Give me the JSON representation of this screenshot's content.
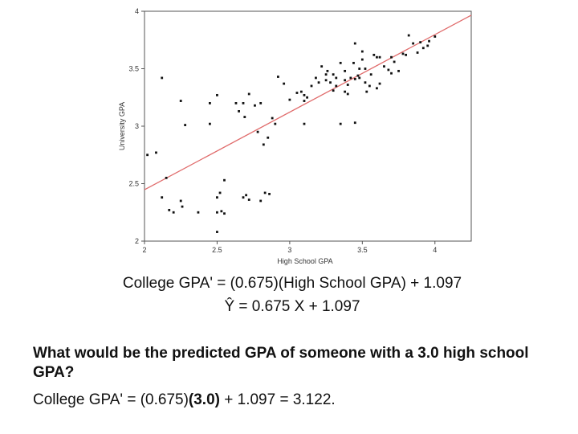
{
  "chart_data": {
    "type": "scatter",
    "xlabel": "High School GPA",
    "ylabel": "University GPA",
    "xlim": [
      2,
      4.25
    ],
    "ylim": [
      2,
      4
    ],
    "xticks": [
      "2",
      "2.5",
      "3",
      "3.5",
      "4"
    ],
    "yticks": [
      "2",
      "2.5",
      "3",
      "3.5",
      "4"
    ],
    "point_color": "#111111",
    "line_color": "#e06b6b",
    "regression": {
      "slope": 0.675,
      "intercept": 1.097
    },
    "points": [
      [
        2.02,
        2.75
      ],
      [
        2.08,
        2.77
      ],
      [
        2.12,
        3.42
      ],
      [
        2.12,
        2.38
      ],
      [
        2.15,
        2.55
      ],
      [
        2.17,
        2.27
      ],
      [
        2.2,
        2.25
      ],
      [
        2.25,
        3.22
      ],
      [
        2.25,
        2.35
      ],
      [
        2.26,
        2.3
      ],
      [
        2.28,
        3.01
      ],
      [
        2.37,
        2.25
      ],
      [
        2.45,
        3.2
      ],
      [
        2.45,
        3.02
      ],
      [
        2.5,
        3.27
      ],
      [
        2.5,
        2.38
      ],
      [
        2.52,
        2.42
      ],
      [
        2.55,
        2.53
      ],
      [
        2.53,
        2.26
      ],
      [
        2.55,
        2.24
      ],
      [
        2.5,
        2.08
      ],
      [
        2.5,
        2.25
      ],
      [
        2.63,
        3.2
      ],
      [
        2.65,
        3.13
      ],
      [
        2.68,
        3.2
      ],
      [
        2.69,
        3.08
      ],
      [
        2.72,
        3.28
      ],
      [
        2.76,
        3.18
      ],
      [
        2.78,
        2.95
      ],
      [
        2.8,
        3.2
      ],
      [
        2.68,
        2.38
      ],
      [
        2.7,
        2.4
      ],
      [
        2.72,
        2.36
      ],
      [
        2.8,
        2.35
      ],
      [
        2.83,
        2.42
      ],
      [
        2.86,
        2.41
      ],
      [
        2.82,
        2.84
      ],
      [
        2.85,
        2.9
      ],
      [
        2.88,
        3.07
      ],
      [
        2.9,
        3.02
      ],
      [
        2.92,
        3.43
      ],
      [
        2.96,
        3.37
      ],
      [
        3.0,
        3.23
      ],
      [
        3.05,
        3.29
      ],
      [
        3.08,
        3.3
      ],
      [
        3.1,
        3.27
      ],
      [
        3.1,
        3.22
      ],
      [
        3.12,
        3.25
      ],
      [
        3.15,
        3.35
      ],
      [
        3.18,
        3.42
      ],
      [
        3.2,
        3.38
      ],
      [
        3.22,
        3.52
      ],
      [
        3.25,
        3.45
      ],
      [
        3.26,
        3.48
      ],
      [
        3.28,
        3.38
      ],
      [
        3.3,
        3.31
      ],
      [
        3.32,
        3.42
      ],
      [
        3.3,
        3.45
      ],
      [
        3.35,
        3.55
      ],
      [
        3.38,
        3.4
      ],
      [
        3.38,
        3.3
      ],
      [
        3.48,
        3.42
      ],
      [
        3.5,
        3.58
      ],
      [
        3.45,
        3.41
      ],
      [
        3.47,
        3.44
      ],
      [
        3.52,
        3.38
      ],
      [
        3.53,
        3.3
      ],
      [
        3.55,
        3.35
      ],
      [
        3.6,
        3.6
      ],
      [
        3.62,
        3.37
      ],
      [
        3.65,
        3.52
      ],
      [
        3.68,
        3.49
      ],
      [
        3.7,
        3.6
      ],
      [
        3.72,
        3.56
      ],
      [
        3.75,
        3.48
      ],
      [
        3.78,
        3.63
      ],
      [
        3.8,
        3.62
      ],
      [
        3.82,
        3.79
      ],
      [
        3.85,
        3.72
      ],
      [
        3.88,
        3.64
      ],
      [
        3.9,
        3.73
      ],
      [
        3.92,
        3.68
      ],
      [
        3.95,
        3.7
      ],
      [
        3.96,
        3.74
      ],
      [
        4.0,
        3.78
      ],
      [
        3.45,
        3.72
      ],
      [
        3.5,
        3.65
      ],
      [
        3.52,
        3.5
      ],
      [
        3.42,
        3.42
      ],
      [
        3.44,
        3.55
      ],
      [
        3.4,
        3.28
      ],
      [
        3.35,
        3.02
      ],
      [
        3.45,
        3.03
      ],
      [
        3.1,
        3.02
      ],
      [
        3.25,
        3.4
      ],
      [
        3.32,
        3.35
      ],
      [
        3.56,
        3.45
      ],
      [
        3.6,
        3.33
      ],
      [
        3.7,
        3.46
      ],
      [
        3.48,
        3.5
      ],
      [
        3.58,
        3.62
      ],
      [
        3.62,
        3.6
      ],
      [
        3.38,
        3.48
      ],
      [
        3.4,
        3.36
      ]
    ]
  },
  "text": {
    "equation1": "College GPA' = (0.675)(High School GPA) + 1.097",
    "equation2": "Ŷ = 0.675 X + 1.097",
    "question": "What would be the predicted GPA of someone with a 3.0 high school GPA?",
    "answer_prefix": "College GPA' = (0.675)",
    "answer_bold": "(3.0)",
    "answer_suffix": " + 1.097 = 3.122."
  }
}
